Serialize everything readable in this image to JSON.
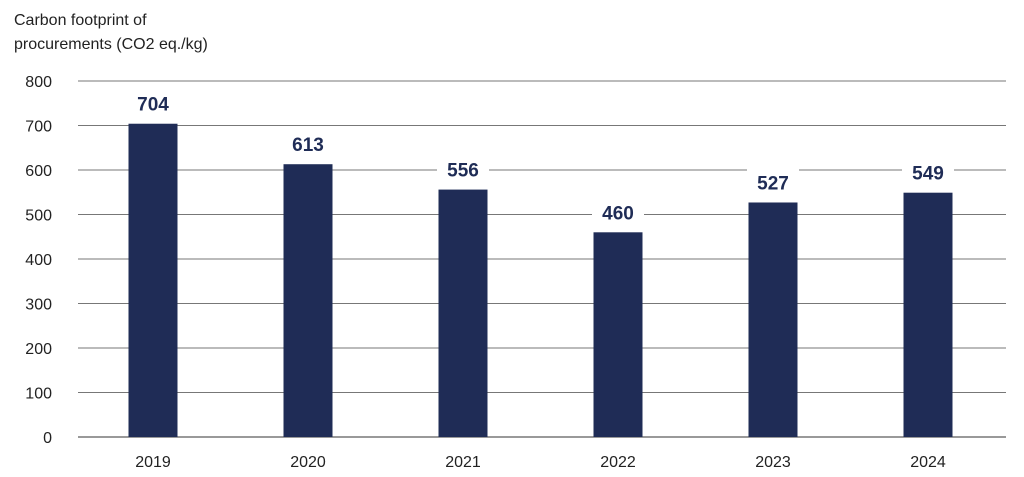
{
  "chart_data": {
    "type": "bar",
    "title": [
      "Carbon footprint of",
      "procurements (CO2 eq./kg)"
    ],
    "categories": [
      "2019",
      "2020",
      "2021",
      "2022",
      "2023",
      "2024"
    ],
    "values": [
      704,
      613,
      556,
      460,
      527,
      549
    ],
    "data_labels": [
      "704",
      "613",
      "556",
      "460",
      "527",
      "549"
    ],
    "yticks": [
      "0",
      "100",
      "200",
      "300",
      "400",
      "500",
      "600",
      "700",
      "800"
    ],
    "ylim": [
      0,
      800
    ],
    "grid": true,
    "colors": {
      "bar": "#1f2c56",
      "label": "#1f2c56",
      "grid": "#777777",
      "axis": "#333333"
    }
  }
}
